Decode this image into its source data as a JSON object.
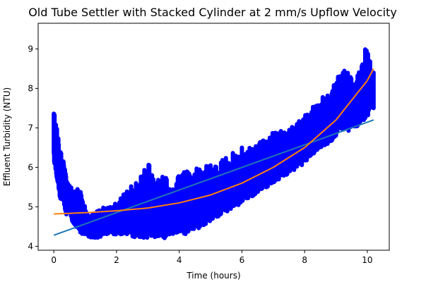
{
  "chart_data": {
    "type": "scatter",
    "title": "Old Tube Settler with Stacked Cylinder at 2 mm/s Upflow Velocity",
    "xlabel": "Time (hours)",
    "ylabel": "Effluent Turbidity (NTU)",
    "xlim": [
      -0.5,
      10.7
    ],
    "ylim": [
      3.9,
      9.65
    ],
    "xticks": [
      0,
      2,
      4,
      6,
      8,
      10
    ],
    "yticks": [
      4,
      5,
      6,
      7,
      8,
      9
    ],
    "grid": false,
    "legend": "none",
    "colors": {
      "data": "#0000ff",
      "linear_fit": "#1f77b4",
      "poly_fit": "#ff7f0e"
    },
    "series": [
      {
        "kind": "scatter-band",
        "x": [
          0.0,
          0.1,
          0.2,
          0.3,
          0.4,
          0.5,
          0.6,
          0.7,
          0.8,
          0.9,
          1.0,
          1.2,
          1.4,
          1.6,
          1.8,
          2.0,
          2.2,
          2.4,
          2.6,
          2.8,
          3.0,
          3.2,
          3.4,
          3.6,
          3.8,
          4.0,
          4.2,
          4.4,
          4.6,
          4.8,
          5.0,
          5.2,
          5.4,
          5.6,
          5.8,
          6.0,
          6.2,
          6.4,
          6.6,
          6.8,
          7.0,
          7.2,
          7.4,
          7.6,
          7.8,
          8.0,
          8.2,
          8.4,
          8.6,
          8.8,
          9.0,
          9.2,
          9.4,
          9.6,
          9.8,
          10.0,
          10.2
        ],
        "low": [
          6.2,
          5.7,
          5.2,
          5.1,
          4.8,
          4.9,
          4.6,
          4.5,
          4.4,
          4.3,
          4.3,
          4.2,
          4.2,
          4.3,
          4.3,
          4.3,
          4.3,
          4.3,
          4.2,
          4.2,
          4.2,
          4.2,
          4.2,
          4.2,
          4.3,
          4.3,
          4.3,
          4.4,
          4.4,
          4.5,
          4.6,
          4.7,
          4.8,
          4.9,
          5.0,
          5.1,
          5.2,
          5.3,
          5.4,
          5.5,
          5.6,
          5.7,
          5.8,
          5.9,
          6.0,
          6.1,
          6.3,
          6.4,
          6.5,
          6.6,
          6.8,
          6.9,
          6.9,
          7.0,
          7.1,
          7.3,
          7.5
        ],
        "high": [
          7.4,
          7.1,
          6.6,
          6.2,
          5.8,
          5.6,
          5.4,
          5.4,
          5.7,
          5.2,
          5.0,
          4.9,
          4.9,
          5.0,
          5.0,
          5.1,
          5.3,
          5.5,
          5.6,
          5.9,
          6.2,
          5.7,
          5.7,
          5.9,
          5.7,
          5.8,
          5.9,
          6.0,
          6.0,
          6.0,
          6.1,
          6.1,
          6.2,
          6.4,
          6.4,
          6.5,
          6.5,
          6.6,
          6.7,
          6.8,
          6.9,
          6.9,
          7.0,
          7.1,
          7.2,
          7.4,
          7.5,
          7.6,
          7.8,
          7.9,
          8.3,
          8.5,
          8.4,
          8.3,
          8.6,
          9.3,
          8.4
        ]
      },
      {
        "kind": "line",
        "x": [
          0,
          10.2
        ],
        "y": [
          4.28,
          7.2
        ]
      },
      {
        "kind": "line",
        "x": [
          0,
          1,
          2,
          3,
          4,
          5,
          6,
          7,
          8,
          9,
          10,
          10.2
        ],
        "y": [
          4.82,
          4.85,
          4.9,
          4.97,
          5.1,
          5.3,
          5.6,
          6.0,
          6.5,
          7.2,
          8.2,
          8.5
        ]
      }
    ]
  }
}
